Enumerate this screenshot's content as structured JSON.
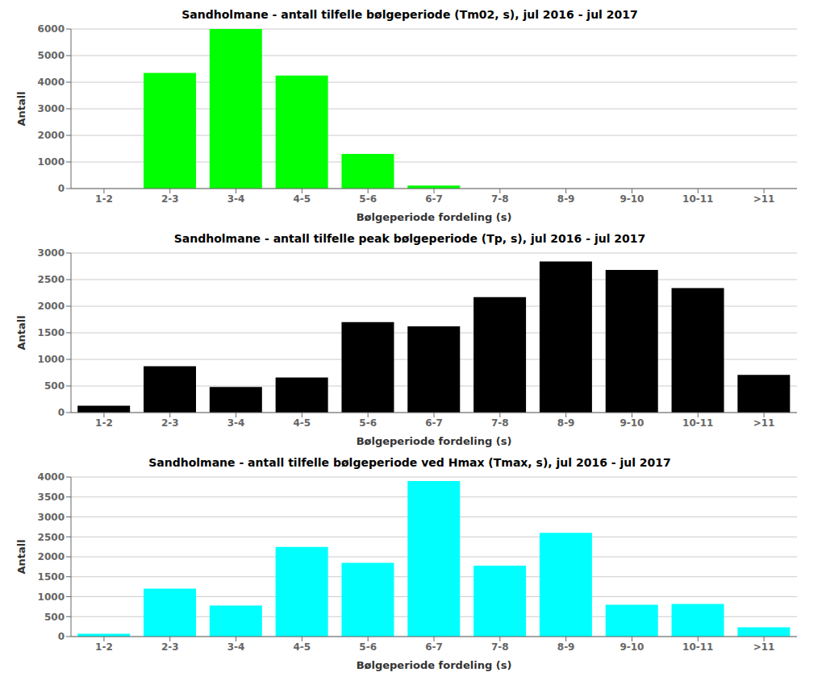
{
  "chart_data": [
    {
      "type": "bar",
      "title": "Sandholmane - antall tilfelle bølgeperiode (Tm02, s), jul 2016 - jul 2017",
      "categories": [
        "1-2",
        "2-3",
        "3-4",
        "4-5",
        "5-6",
        "6-7",
        "7-8",
        "8-9",
        "9-10",
        "10-11",
        ">11"
      ],
      "values": [
        0,
        4350,
        6000,
        4250,
        1300,
        110,
        0,
        0,
        0,
        0,
        0
      ],
      "color": "#00FF00",
      "ylabel": "Antall",
      "xlabel": "Bølgeperiode fordeling (s)",
      "ylim": [
        0,
        6000
      ],
      "yticks": [
        0,
        1000,
        2000,
        3000,
        4000,
        5000,
        6000
      ],
      "grid": true
    },
    {
      "type": "bar",
      "title": "Sandholmane - antall tilfelle peak bølgeperiode (Tp, s), jul 2016 - jul 2017",
      "categories": [
        "1-2",
        "2-3",
        "3-4",
        "4-5",
        "5-6",
        "6-7",
        "7-8",
        "8-9",
        "9-10",
        "10-11",
        ">11"
      ],
      "values": [
        130,
        870,
        480,
        660,
        1700,
        1620,
        2170,
        2840,
        2680,
        2340,
        710
      ],
      "color": "#000000",
      "ylabel": "Antall",
      "xlabel": "Bølgeperiode fordeling (s)",
      "ylim": [
        0,
        3000
      ],
      "yticks": [
        0,
        500,
        1000,
        1500,
        2000,
        2500,
        3000
      ],
      "grid": true
    },
    {
      "type": "bar",
      "title": "Sandholmane - antall tilfelle bølgeperiode ved Hmax (Tmax, s), jul 2016 - jul 2017",
      "categories": [
        "1-2",
        "2-3",
        "3-4",
        "4-5",
        "5-6",
        "6-7",
        "7-8",
        "8-9",
        "9-10",
        "10-11",
        ">11"
      ],
      "values": [
        70,
        1200,
        780,
        2250,
        1850,
        3900,
        1780,
        2600,
        800,
        820,
        230
      ],
      "color": "#00FFFF",
      "ylabel": "Antall",
      "xlabel": "Bølgeperiode fordeling (s)",
      "ylim": [
        0,
        4000
      ],
      "yticks": [
        0,
        500,
        1000,
        1500,
        2000,
        2500,
        3000,
        3500,
        4000
      ],
      "grid": true
    }
  ]
}
